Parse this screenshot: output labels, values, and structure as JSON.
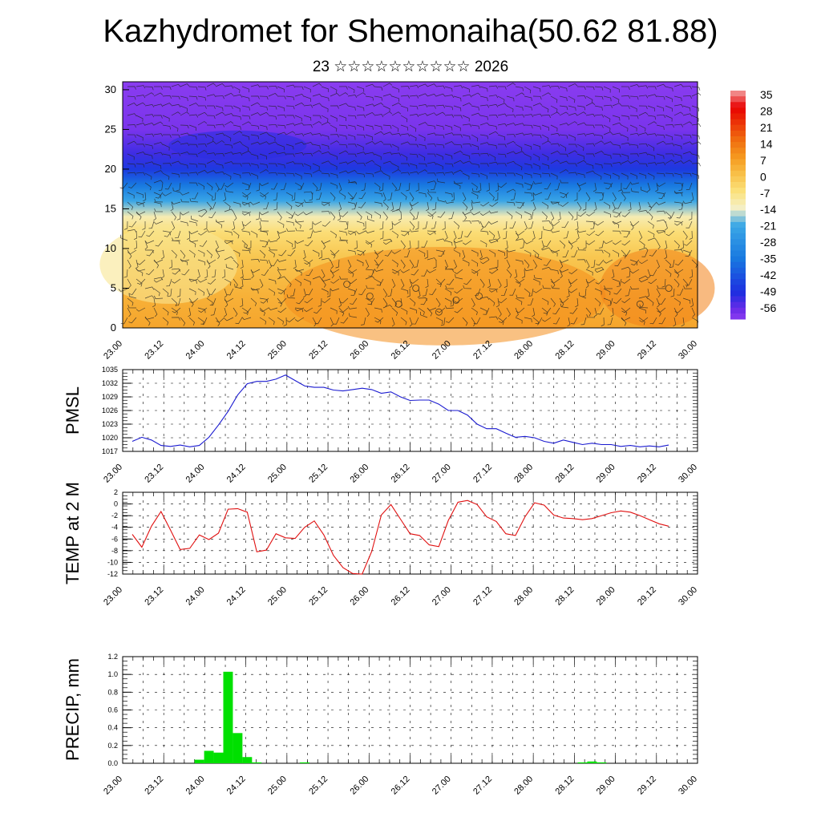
{
  "title": "Kazhydromet for Shemonaiha(50.62 81.88)",
  "subtitle": "23 ☆☆☆☆☆☆☆☆☆☆ 2026",
  "chart_data": [
    {
      "id": "cross_section",
      "type": "heatmap",
      "xlabel": "",
      "ylabel": "",
      "x_tick_labels": [
        "23.00",
        "23.12",
        "24.00",
        "24.12",
        "25.00",
        "25.12",
        "26.00",
        "26.12",
        "27.00",
        "27.12",
        "28.00",
        "28.12",
        "29.00",
        "29.12",
        "30.00"
      ],
      "y_ticks": [
        0,
        5,
        10,
        15,
        20,
        25,
        30
      ],
      "ylim": [
        0,
        31
      ],
      "colorbar": {
        "labels": [
          "35",
          "28",
          "21",
          "14",
          "7",
          "0",
          "-7",
          "-14",
          "-21",
          "-28",
          "-35",
          "-42",
          "-49",
          "-56"
        ],
        "stops": [
          {
            "value": 35,
            "color": "#f3a0a0"
          },
          {
            "value": 28,
            "color": "#e80000"
          },
          {
            "value": 14,
            "color": "#f07010"
          },
          {
            "value": 7,
            "color": "#f59a20"
          },
          {
            "value": 0,
            "color": "#f8c24a"
          },
          {
            "value": -7,
            "color": "#fbe27c"
          },
          {
            "value": -14,
            "color": "#f4f0c8"
          },
          {
            "value": -21,
            "color": "#3ca8e6"
          },
          {
            "value": -35,
            "color": "#1878e0"
          },
          {
            "value": -49,
            "color": "#1e2ee0"
          },
          {
            "value": -56,
            "color": "#6a2ce8"
          },
          {
            "value": -60,
            "color": "#8a3cf0"
          }
        ]
      }
    },
    {
      "id": "pmsl",
      "type": "line",
      "ylabel": "PMSL",
      "y_ticks": [
        1017,
        1020,
        1023,
        1026,
        1029,
        1032,
        1035
      ],
      "ylim": [
        1017,
        1035
      ],
      "x_tick_labels": [
        "23.00",
        "23.12",
        "24.00",
        "24.12",
        "25.00",
        "25.12",
        "26.00",
        "26.12",
        "27.00",
        "27.12",
        "28.00",
        "28.12",
        "29.00",
        "29.12",
        "30.00"
      ],
      "x_range": [
        0,
        168
      ],
      "color": "#1a1ad0",
      "series": [
        {
          "x": [
            0,
            3,
            6,
            9,
            12,
            15,
            18,
            21,
            24,
            27,
            30,
            33,
            36,
            39,
            42,
            45,
            48,
            51,
            54,
            57,
            60,
            63,
            66,
            69,
            72,
            75,
            78,
            81,
            84,
            87,
            90,
            93,
            96,
            99,
            102,
            105,
            108,
            111,
            114,
            117,
            120,
            123,
            126,
            129,
            132,
            135,
            138,
            141,
            144,
            147,
            150,
            153,
            156,
            159,
            162,
            165,
            168
          ],
          "values": [
            1019.2,
            1020.1,
            1019.5,
            1018.3,
            1018.1,
            1018.4,
            1018.0,
            1018.3,
            1020.1,
            1022.8,
            1025.8,
            1029.4,
            1031.9,
            1032.4,
            1032.4,
            1032.9,
            1033.8,
            1032.6,
            1031.4,
            1031.1,
            1031.1,
            1030.5,
            1030.3,
            1030.6,
            1030.9,
            1030.6,
            1029.8,
            1030.1,
            1029.0,
            1028.2,
            1028.3,
            1028.3,
            1027.4,
            1026.0,
            1026.0,
            1025.0,
            1023.0,
            1022.0,
            1022.0,
            1021.0,
            1020.1,
            1020.3,
            1020.0,
            1019.2,
            1018.8,
            1019.5,
            1019.0,
            1018.5,
            1018.8,
            1018.5,
            1018.5,
            1018.1,
            1018.3,
            1018.0,
            1018.2,
            1018.0,
            1018.4
          ]
        }
      ]
    },
    {
      "id": "temp2m",
      "type": "line",
      "ylabel": "TEMP at 2 M",
      "y_ticks": [
        -12,
        -10,
        -8,
        -6,
        -4,
        -2,
        0,
        2
      ],
      "ylim": [
        -12,
        2
      ],
      "x_tick_labels": [
        "23.00",
        "23.12",
        "24.00",
        "24.12",
        "25.00",
        "25.12",
        "26.00",
        "26.12",
        "27.00",
        "27.12",
        "28.00",
        "28.12",
        "29.00",
        "29.12",
        "30.00"
      ],
      "x_range": [
        0,
        168
      ],
      "color": "#e01010",
      "series": [
        {
          "x": [
            0,
            3,
            6,
            9,
            12,
            15,
            18,
            21,
            24,
            27,
            30,
            33,
            36,
            39,
            42,
            45,
            48,
            51,
            54,
            57,
            60,
            63,
            66,
            69,
            72,
            75,
            78,
            81,
            84,
            87,
            90,
            93,
            96,
            99,
            102,
            105,
            108,
            111,
            114,
            117,
            120,
            123,
            126,
            129,
            132,
            135,
            138,
            141,
            144,
            147,
            150,
            153,
            156,
            159,
            162,
            165,
            168
          ],
          "values": [
            -5.2,
            -7.4,
            -3.8,
            -1.3,
            -4.5,
            -7.8,
            -7.6,
            -5.3,
            -6.1,
            -5.0,
            -0.9,
            -0.8,
            -1.4,
            -8.2,
            -7.9,
            -5.1,
            -5.8,
            -5.9,
            -4.0,
            -2.9,
            -5.3,
            -8.8,
            -10.9,
            -11.9,
            -12.0,
            -8.1,
            -1.9,
            -0.1,
            -2.6,
            -5.1,
            -5.4,
            -7.0,
            -7.3,
            -2.8,
            0.3,
            0.6,
            -0.1,
            -2.2,
            -3.0,
            -5.1,
            -5.4,
            -2.2,
            0.2,
            -0.2,
            -1.9,
            -2.4,
            -2.5,
            -2.7,
            -2.5,
            -2.0,
            -1.5,
            -1.2,
            -1.4,
            -2.0,
            -2.7,
            -3.4,
            -3.8
          ]
        }
      ]
    },
    {
      "id": "precip",
      "type": "bar",
      "ylabel": "PRECIP, mm",
      "y_ticks": [
        0.0,
        0.2,
        0.4,
        0.6,
        0.8,
        1.0,
        1.2
      ],
      "ylim": [
        0,
        1.2
      ],
      "x_tick_labels": [
        "23.00",
        "23.12",
        "24.00",
        "24.12",
        "25.00",
        "25.12",
        "26.00",
        "26.12",
        "27.00",
        "27.12",
        "28.00",
        "28.12",
        "29.00",
        "29.12",
        "30.00"
      ],
      "x_range": [
        0,
        168
      ],
      "color": "#00e000",
      "bars": [
        {
          "x": 21,
          "value": 0.04
        },
        {
          "x": 24,
          "value": 0.14
        },
        {
          "x": 27,
          "value": 0.12
        },
        {
          "x": 30,
          "value": 1.03
        },
        {
          "x": 33,
          "value": 0.34
        },
        {
          "x": 36,
          "value": 0.07
        },
        {
          "x": 39,
          "value": 0.01
        },
        {
          "x": 54,
          "value": 0.01
        },
        {
          "x": 141,
          "value": 0.01
        },
        {
          "x": 144,
          "value": 0.02
        },
        {
          "x": 147,
          "value": 0.01
        }
      ]
    }
  ]
}
